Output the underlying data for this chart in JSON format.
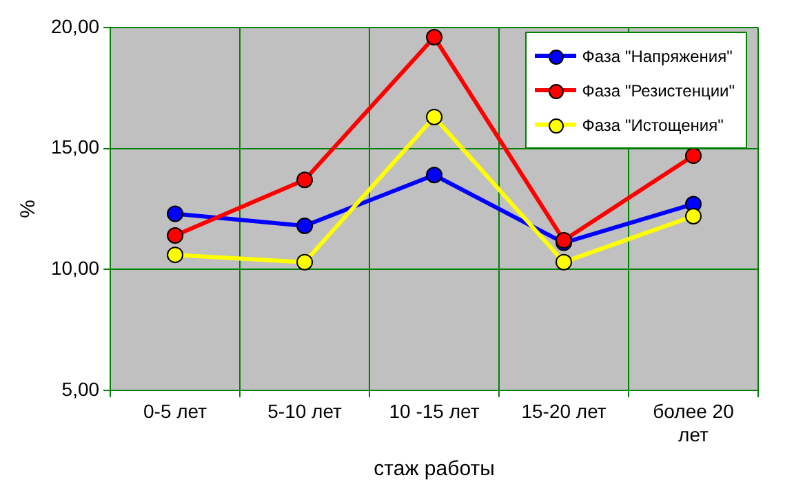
{
  "chart_data": {
    "type": "line",
    "xlabel": "стаж работы",
    "ylabel": "%",
    "categories": [
      "0-5 лет",
      "5-10 лет",
      "10 -15 лет",
      "15-20 лет",
      "более 20 лет"
    ],
    "series": [
      {
        "name": "Фаза \"Напряжения\"",
        "color": "#0000ff",
        "values": [
          12.3,
          11.8,
          13.9,
          11.1,
          12.7
        ]
      },
      {
        "name": "Фаза \"Резистенции\"",
        "color": "#ff0000",
        "values": [
          11.4,
          13.7,
          19.6,
          11.2,
          14.7
        ]
      },
      {
        "name": "Фаза \"Истощения\"",
        "color": "#ffff00",
        "values": [
          10.6,
          10.3,
          16.3,
          10.3,
          12.2
        ]
      }
    ],
    "ylim": [
      5,
      20
    ],
    "yticks": [
      {
        "value": 5,
        "label": "5,00"
      },
      {
        "value": 10,
        "label": "10,00"
      },
      {
        "value": 15,
        "label": "15,00"
      },
      {
        "value": 20,
        "label": "20,00"
      }
    ],
    "grid": true,
    "legend": "top right",
    "marker": "circle",
    "line_style": "solid"
  }
}
